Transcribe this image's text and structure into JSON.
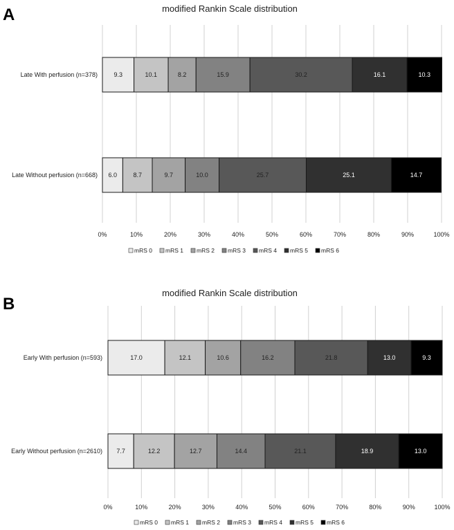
{
  "categories_legend": [
    "mRS 0",
    "mRS 1",
    "mRS 2",
    "mRS 3",
    "mRS 4",
    "mRS 5",
    "mRS 6"
  ],
  "colors": [
    "#ebebeb",
    "#c4c4c4",
    "#a3a3a3",
    "#828282",
    "#585858",
    "#303030",
    "#000000"
  ],
  "label_colors": [
    "#222222",
    "#222222",
    "#222222",
    "#222222",
    "#222222",
    "#ffffff",
    "#ffffff"
  ],
  "chart_data": [
    {
      "panel": "A",
      "type": "bar",
      "orientation": "horizontal",
      "stacked": true,
      "title": "modified Rankin Scale distribution",
      "categories": [
        "Late With perfusion (n=378)",
        "Late Without perfusion (n=668)"
      ],
      "series": [
        {
          "name": "mRS 0",
          "values": [
            9.3,
            6.0
          ]
        },
        {
          "name": "mRS 1",
          "values": [
            10.1,
            8.7
          ]
        },
        {
          "name": "mRS 2",
          "values": [
            8.2,
            9.7
          ]
        },
        {
          "name": "mRS 3",
          "values": [
            15.9,
            10.0
          ]
        },
        {
          "name": "mRS 4",
          "values": [
            30.2,
            25.7
          ]
        },
        {
          "name": "mRS 5",
          "values": [
            16.1,
            25.1
          ]
        },
        {
          "name": "mRS 6",
          "values": [
            10.3,
            14.7
          ]
        }
      ],
      "x_ticks": [
        "0%",
        "10%",
        "20%",
        "30%",
        "40%",
        "50%",
        "60%",
        "70%",
        "80%",
        "90%",
        "100%"
      ],
      "xlim": [
        0,
        100
      ],
      "grid": "vertical",
      "legend": "bottom"
    },
    {
      "panel": "B",
      "type": "bar",
      "orientation": "horizontal",
      "stacked": true,
      "title": "modified Rankin Scale distribution",
      "categories": [
        "Early With perfusion (n=593)",
        "Early Without perfusion (n=2610)"
      ],
      "series": [
        {
          "name": "mRS 0",
          "values": [
            17.0,
            7.7
          ]
        },
        {
          "name": "mRS 1",
          "values": [
            12.1,
            12.2
          ]
        },
        {
          "name": "mRS 2",
          "values": [
            10.6,
            12.7
          ]
        },
        {
          "name": "mRS 3",
          "values": [
            16.2,
            14.4
          ]
        },
        {
          "name": "mRS 4",
          "values": [
            21.8,
            21.1
          ]
        },
        {
          "name": "mRS 5",
          "values": [
            13.0,
            18.9
          ]
        },
        {
          "name": "mRS 6",
          "values": [
            9.3,
            13.0
          ]
        }
      ],
      "x_ticks": [
        "0%",
        "10%",
        "20%",
        "30%",
        "40%",
        "50%",
        "60%",
        "70%",
        "80%",
        "90%",
        "100%"
      ],
      "xlim": [
        0,
        100
      ],
      "grid": "vertical",
      "legend": "bottom"
    }
  ]
}
